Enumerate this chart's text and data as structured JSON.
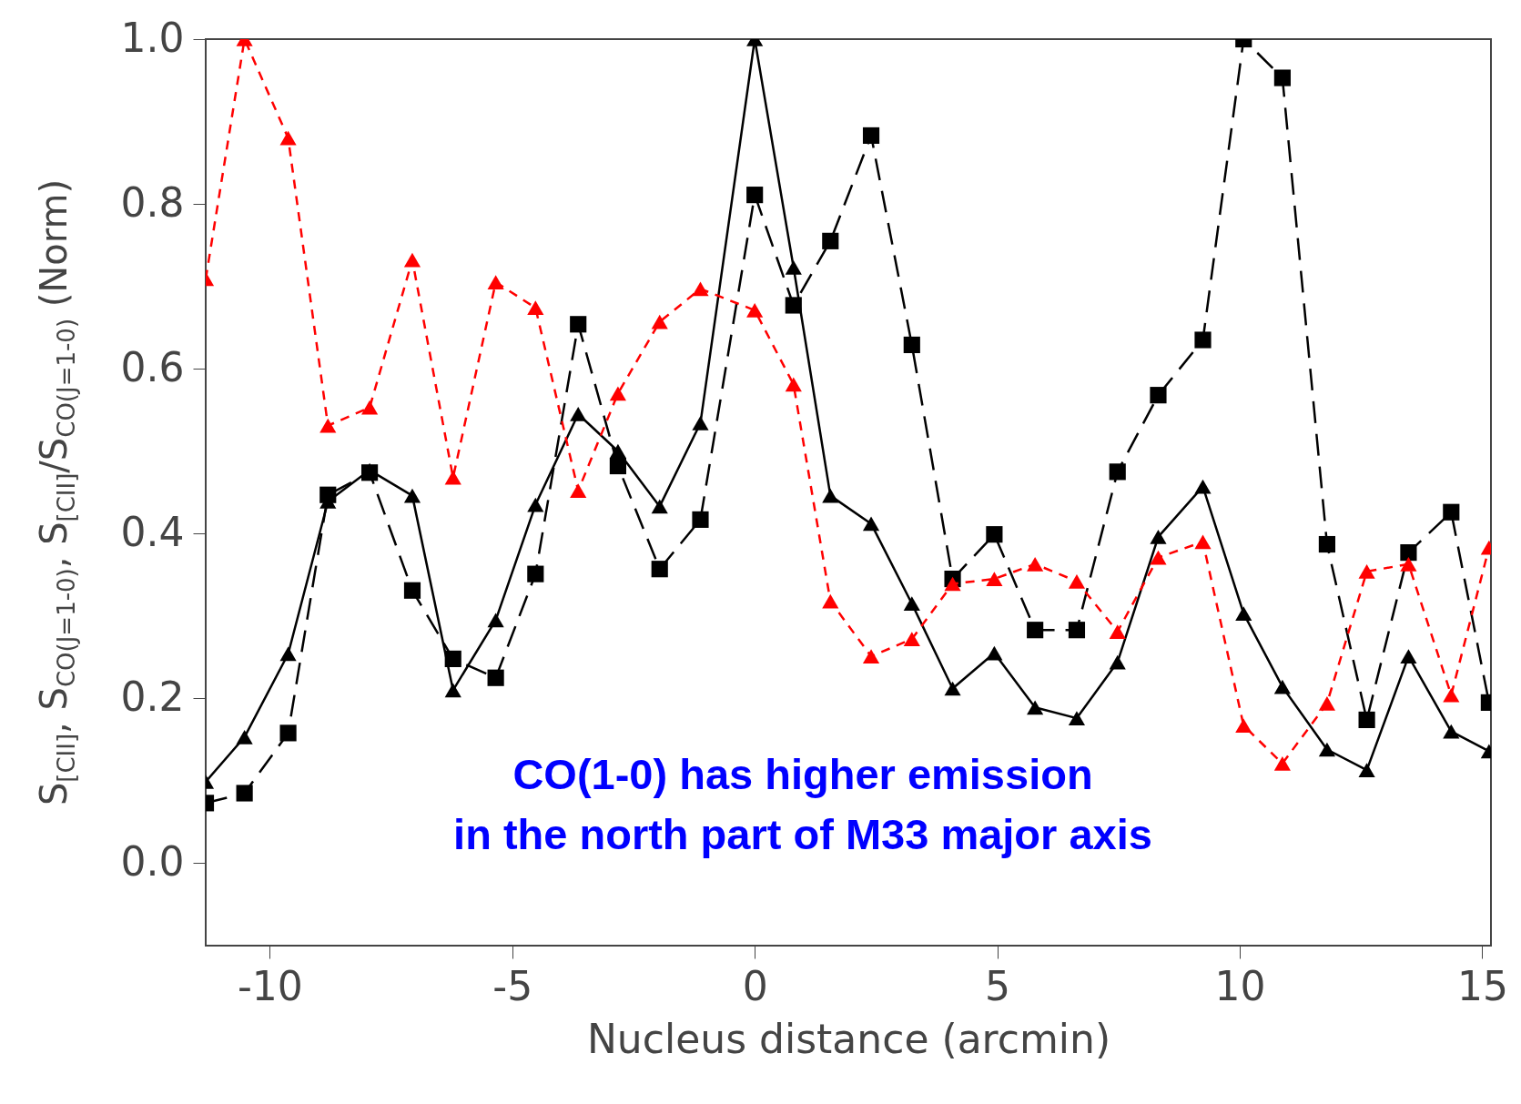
{
  "chart_data": {
    "type": "line",
    "xlabel": "Nucleus distance (arcmin)",
    "ylabel": "S$_{[CII]}$, S$_{CO(J=1-0)}$, S$_{[CII]}$/S$_{CO(J=1-0)}$ (Norm)",
    "x": [
      -11.32,
      -10.52,
      -9.62,
      -8.8,
      -7.94,
      -7.06,
      -6.22,
      -5.34,
      -4.52,
      -3.64,
      -2.82,
      -1.96,
      -1.12,
      0,
      0.8,
      1.56,
      2.4,
      3.24,
      4.08,
      4.94,
      5.78,
      6.64,
      7.48,
      8.32,
      9.24,
      10.08,
      10.88,
      11.8,
      12.62,
      13.48,
      14.36,
      15.14
    ],
    "series": [
      {
        "color": "#000000",
        "line_style": "solid",
        "marker": "triangle",
        "values": [
          0.099,
          0.153,
          0.254,
          0.439,
          0.477,
          0.446,
          0.21,
          0.295,
          0.435,
          0.545,
          0.5,
          0.433,
          0.534,
          1.0,
          0.723,
          0.446,
          0.412,
          0.315,
          0.212,
          0.255,
          0.189,
          0.176,
          0.244,
          0.396,
          0.457,
          0.303,
          0.214,
          0.138,
          0.113,
          0.251,
          0.16,
          0.136
        ]
      },
      {
        "color": "#000000",
        "line_style": "dashed",
        "marker": "square",
        "values": [
          0.073,
          0.085,
          0.158,
          0.447,
          0.474,
          0.331,
          0.248,
          0.225,
          0.351,
          0.654,
          0.482,
          0.357,
          0.417,
          0.811,
          0.677,
          0.755,
          0.883,
          0.629,
          0.345,
          0.399,
          0.283,
          0.283,
          0.475,
          0.568,
          0.635,
          1.0,
          0.953,
          0.387,
          0.174,
          0.377,
          0.426,
          0.195
        ]
      },
      {
        "color": "#ff0000",
        "line_style": "dotted",
        "marker": "triangle",
        "values": [
          0.709,
          1.0,
          0.88,
          0.531,
          0.553,
          0.732,
          0.468,
          0.705,
          0.674,
          0.452,
          0.57,
          0.657,
          0.697,
          0.671,
          0.581,
          0.318,
          0.251,
          0.272,
          0.339,
          0.345,
          0.363,
          0.342,
          0.281,
          0.371,
          0.39,
          0.167,
          0.121,
          0.194,
          0.354,
          0.363,
          0.204,
          0.383
        ]
      }
    ],
    "xlim": [
      -11.32,
      15.18
    ],
    "xticks": [
      -10,
      -5,
      0,
      5,
      10,
      15
    ],
    "ylim": [
      -0.1,
      1.0
    ],
    "yticks": [
      {
        "value": 0,
        "label": "0.0"
      },
      0.2,
      0.4,
      0.6,
      0.8,
      {
        "value": 1,
        "label": "1.0"
      }
    ],
    "grid": false,
    "annotations": [
      "CO(1-0) has higher emission",
      "in the north part of M33 major axis"
    ]
  }
}
